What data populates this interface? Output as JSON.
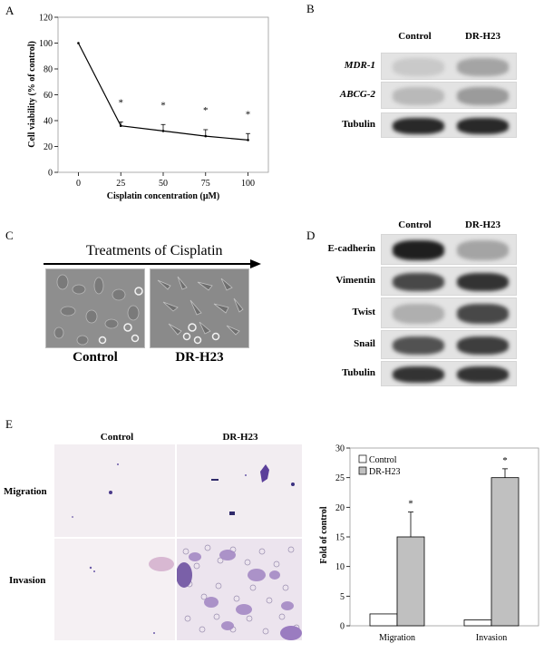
{
  "panels": {
    "A": {
      "letter": "A",
      "chart_data": {
        "type": "line",
        "x": [
          0,
          25,
          50,
          75,
          100
        ],
        "y": [
          100,
          36,
          32,
          28,
          25
        ],
        "errors": [
          0,
          3,
          5,
          5,
          5
        ],
        "significance": [
          "",
          "*",
          "*",
          "*",
          "*"
        ],
        "xlabel": "Cisplatin concentration (μM)",
        "ylabel": "Cell viability (% of control)",
        "ylim": [
          0,
          120
        ],
        "yticks": [
          0,
          20,
          40,
          60,
          80,
          100,
          120
        ],
        "xtick_labels": [
          "0",
          "25",
          "50",
          "75",
          "100"
        ]
      }
    },
    "B": {
      "letter": "B",
      "columns": [
        "Control",
        "DR-H23"
      ],
      "rows": [
        "MDR-1",
        "ABCG-2",
        "Tubulin"
      ]
    },
    "C": {
      "letter": "C",
      "arrow_label": "Treatments of Cisplatin",
      "images": [
        "Control",
        "DR-H23"
      ]
    },
    "D": {
      "letter": "D",
      "columns": [
        "Control",
        "DR-H23"
      ],
      "rows": [
        "E-cadherin",
        "Vimentin",
        "Twist",
        "Snail",
        "Tubulin"
      ]
    },
    "E": {
      "letter": "E",
      "columns": [
        "Control",
        "DR-H23"
      ],
      "rows": [
        "Migration",
        "Invasion"
      ],
      "chart_data": {
        "type": "bar",
        "categories": [
          "Migration",
          "Invasion"
        ],
        "series": [
          {
            "name": "Control",
            "values": [
              2,
              1
            ],
            "errors": [
              0,
              0
            ],
            "color": "#ffffff"
          },
          {
            "name": "DR-H23",
            "values": [
              15,
              25
            ],
            "errors": [
              4.2,
              1.5
            ],
            "color": "#c0c0c0"
          }
        ],
        "significance": [
          "*",
          "*"
        ],
        "ylabel": "Fold of control",
        "ylim": [
          0,
          30
        ],
        "yticks": [
          0,
          5,
          10,
          15,
          20,
          25,
          30
        ],
        "legend_position": "top-left"
      }
    }
  }
}
